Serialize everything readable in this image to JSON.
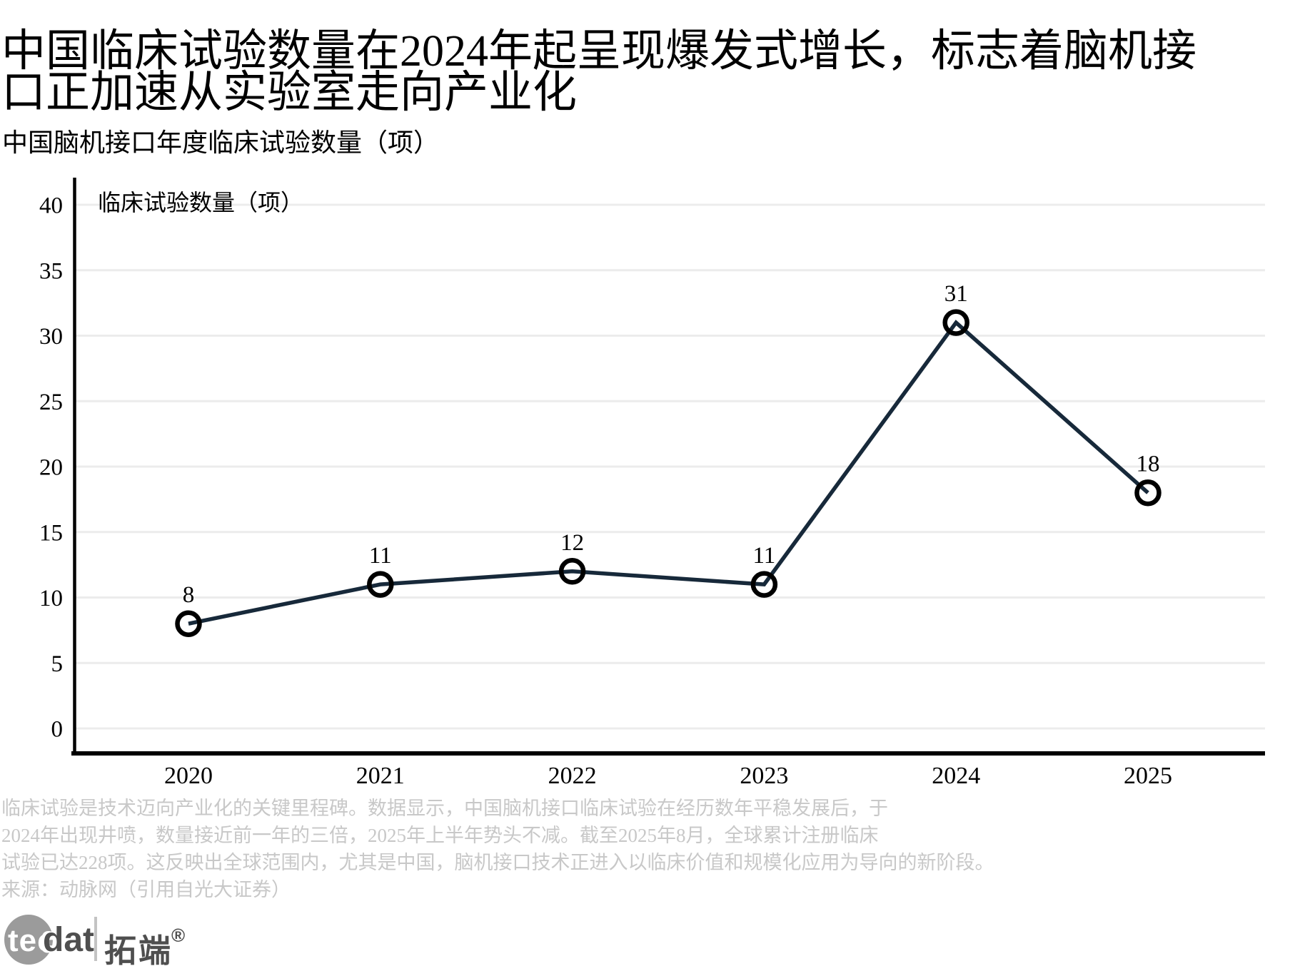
{
  "header": {
    "title_lines": [
      "中国临床试验数量在2024年起呈现爆发式增长，标志着脑机接",
      "口正加速从实验室走向产业化"
    ],
    "subtitle": "中国脑机接口年度临床试验数量（项）"
  },
  "chart_data": {
    "type": "line",
    "title": "中国脑机接口年度临床试验数量（项）",
    "series_label": "临床试验数量（项）",
    "categories": [
      "2020",
      "2021",
      "2022",
      "2023",
      "2024",
      "2025"
    ],
    "values": [
      8,
      11,
      12,
      11,
      31,
      18
    ],
    "xlabel": "",
    "ylabel": "",
    "ylim": [
      0,
      40
    ],
    "yticks": [
      0,
      5,
      10,
      15,
      20,
      25,
      30,
      35,
      40
    ],
    "grid": "horizontal",
    "legend_position": "top-left-inside",
    "marker": "open-circle"
  },
  "notes": {
    "lines": [
      "临床试验是技术迈向产业化的关键里程碑。数据显示，中国脑机接口临床试验在经历数年平稳发展后，于",
      "2024年出现井喷，数量接近前一年的三倍，2025年上半年势头不减。截至2025年8月，全球累计注册临床",
      "试验已达228项。这反映出全球范围内，尤其是中国，脑机接口技术正进入以临床价值和规模化应用为导向的新阶段。"
    ],
    "source": "来源：动脉网（引用自光大证券）"
  },
  "logo": {
    "tec": "tec",
    "dat": "dat",
    "name_cn": "拓端",
    "registered": "®"
  },
  "colors": {
    "line": "#17293a",
    "marker_ring": "#000000",
    "grid": "#ececec",
    "axis": "#000000",
    "text": "#000000",
    "notes": "#c8c8c8",
    "logo_gray": "#9b9b9b",
    "logo_dark": "#4f4f4f"
  }
}
